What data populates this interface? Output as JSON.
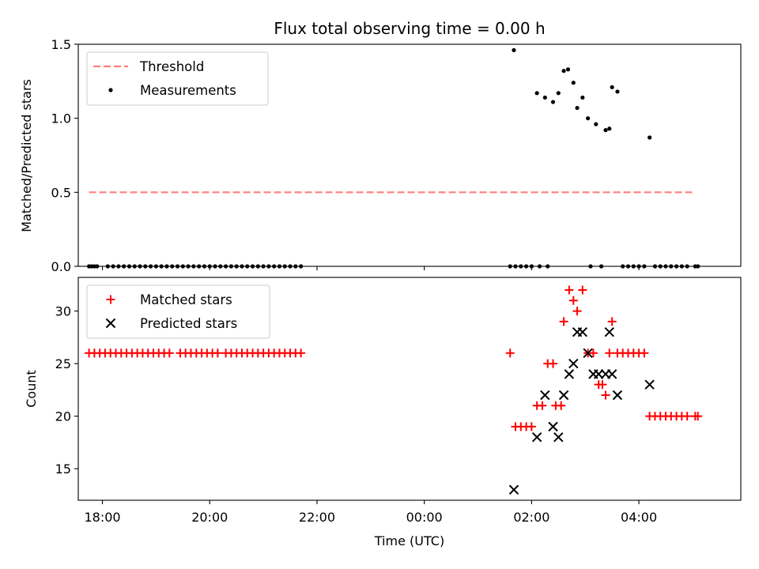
{
  "chart_data": [
    {
      "id": "top",
      "type": "scatter",
      "title": "Flux total observing time = 0.00 h",
      "ylabel": "Matched/Predicted stars",
      "xlabel": "",
      "xlim": [
        17.55,
        29.9
      ],
      "ylim": [
        0,
        1.5
      ],
      "yticks": [
        0.0,
        0.5,
        1.0,
        1.5
      ],
      "ytick_labels": [
        "0.0",
        "0.5",
        "1.0",
        "1.5"
      ],
      "xticks": [
        18,
        20,
        22,
        24,
        26,
        28
      ],
      "show_xtick_labels": false,
      "legend": {
        "position": "upper-left",
        "entries": [
          "Threshold",
          "Measurements"
        ]
      },
      "threshold": {
        "name": "Threshold",
        "value": 0.5,
        "x_start": 17.75,
        "x_end": 29.05,
        "color": "#ff7f7f",
        "style": "dashed"
      },
      "series": [
        {
          "name": "Measurements",
          "marker": "dot",
          "color": "#000000",
          "points": [
            [
              17.75,
              0
            ],
            [
              17.8,
              0
            ],
            [
              17.85,
              0
            ],
            [
              17.9,
              0
            ],
            [
              18.1,
              0
            ],
            [
              18.2,
              0
            ],
            [
              18.3,
              0
            ],
            [
              18.4,
              0
            ],
            [
              18.5,
              0
            ],
            [
              18.6,
              0
            ],
            [
              18.7,
              0
            ],
            [
              18.8,
              0
            ],
            [
              18.9,
              0
            ],
            [
              19.0,
              0
            ],
            [
              19.1,
              0
            ],
            [
              19.2,
              0
            ],
            [
              19.3,
              0
            ],
            [
              19.4,
              0
            ],
            [
              19.5,
              0
            ],
            [
              19.6,
              0
            ],
            [
              19.7,
              0
            ],
            [
              19.8,
              0
            ],
            [
              19.9,
              0
            ],
            [
              20.0,
              0
            ],
            [
              20.1,
              0
            ],
            [
              20.2,
              0
            ],
            [
              20.3,
              0
            ],
            [
              20.4,
              0
            ],
            [
              20.5,
              0
            ],
            [
              20.6,
              0
            ],
            [
              20.7,
              0
            ],
            [
              20.8,
              0
            ],
            [
              20.9,
              0
            ],
            [
              21.0,
              0
            ],
            [
              21.1,
              0
            ],
            [
              21.2,
              0
            ],
            [
              21.3,
              0
            ],
            [
              21.4,
              0
            ],
            [
              21.5,
              0
            ],
            [
              21.6,
              0
            ],
            [
              21.7,
              0
            ],
            [
              25.6,
              0
            ],
            [
              25.7,
              0
            ],
            [
              25.8,
              0
            ],
            [
              25.9,
              0
            ],
            [
              26.0,
              0
            ],
            [
              26.15,
              0
            ],
            [
              26.3,
              0
            ],
            [
              25.67,
              1.46
            ],
            [
              26.1,
              1.17
            ],
            [
              26.25,
              1.14
            ],
            [
              26.4,
              1.11
            ],
            [
              26.5,
              1.17
            ],
            [
              26.6,
              1.32
            ],
            [
              26.68,
              1.33
            ],
            [
              26.78,
              1.24
            ],
            [
              26.85,
              1.07
            ],
            [
              26.95,
              1.14
            ],
            [
              27.05,
              1.0
            ],
            [
              27.2,
              0.96
            ],
            [
              27.38,
              0.92
            ],
            [
              27.45,
              0.93
            ],
            [
              27.5,
              1.21
            ],
            [
              27.6,
              1.18
            ],
            [
              28.2,
              0.87
            ],
            [
              27.1,
              0
            ],
            [
              27.3,
              0
            ],
            [
              27.7,
              0
            ],
            [
              27.8,
              0
            ],
            [
              27.9,
              0
            ],
            [
              28.0,
              0
            ],
            [
              28.1,
              0
            ],
            [
              28.3,
              0
            ],
            [
              28.4,
              0
            ],
            [
              28.5,
              0
            ],
            [
              28.6,
              0
            ],
            [
              28.7,
              0
            ],
            [
              28.8,
              0
            ],
            [
              28.9,
              0
            ],
            [
              29.05,
              0
            ],
            [
              29.1,
              0
            ]
          ]
        }
      ]
    },
    {
      "id": "bottom",
      "type": "scatter",
      "title": "",
      "ylabel": "Count",
      "xlabel": "Time (UTC)",
      "xlim": [
        17.55,
        29.9
      ],
      "ylim": [
        12,
        33.2
      ],
      "yticks": [
        15,
        20,
        25,
        30
      ],
      "ytick_labels": [
        "15",
        "20",
        "25",
        "30"
      ],
      "xticks": [
        18,
        20,
        22,
        24,
        26,
        28
      ],
      "xtick_labels": [
        "18:00",
        "20:00",
        "22:00",
        "00:00",
        "02:00",
        "04:00"
      ],
      "show_xtick_labels": true,
      "legend": {
        "position": "upper-left",
        "entries": [
          "Matched stars",
          "Predicted stars"
        ]
      },
      "series": [
        {
          "name": "Matched stars",
          "marker": "plus",
          "color": "#ff0000",
          "points": [
            [
              17.75,
              26
            ],
            [
              17.85,
              26
            ],
            [
              17.95,
              26
            ],
            [
              18.05,
              26
            ],
            [
              18.15,
              26
            ],
            [
              18.25,
              26
            ],
            [
              18.35,
              26
            ],
            [
              18.45,
              26
            ],
            [
              18.55,
              26
            ],
            [
              18.65,
              26
            ],
            [
              18.75,
              26
            ],
            [
              18.85,
              26
            ],
            [
              18.95,
              26
            ],
            [
              19.05,
              26
            ],
            [
              19.15,
              26
            ],
            [
              19.25,
              26
            ],
            [
              19.45,
              26
            ],
            [
              19.55,
              26
            ],
            [
              19.65,
              26
            ],
            [
              19.75,
              26
            ],
            [
              19.85,
              26
            ],
            [
              19.95,
              26
            ],
            [
              20.05,
              26
            ],
            [
              20.15,
              26
            ],
            [
              20.3,
              26
            ],
            [
              20.4,
              26
            ],
            [
              20.5,
              26
            ],
            [
              20.6,
              26
            ],
            [
              20.7,
              26
            ],
            [
              20.8,
              26
            ],
            [
              20.9,
              26
            ],
            [
              21.0,
              26
            ],
            [
              21.1,
              26
            ],
            [
              21.2,
              26
            ],
            [
              21.3,
              26
            ],
            [
              21.4,
              26
            ],
            [
              21.5,
              26
            ],
            [
              21.6,
              26
            ],
            [
              21.7,
              26
            ],
            [
              25.6,
              26
            ],
            [
              25.7,
              19
            ],
            [
              25.8,
              19
            ],
            [
              25.9,
              19
            ],
            [
              26.0,
              19
            ],
            [
              26.1,
              21
            ],
            [
              26.2,
              21
            ],
            [
              26.3,
              25
            ],
            [
              26.4,
              25
            ],
            [
              26.45,
              21
            ],
            [
              26.55,
              21
            ],
            [
              26.6,
              29
            ],
            [
              26.7,
              32
            ],
            [
              26.78,
              31
            ],
            [
              26.85,
              30
            ],
            [
              26.95,
              32
            ],
            [
              27.05,
              26
            ],
            [
              27.15,
              26
            ],
            [
              27.25,
              23
            ],
            [
              27.32,
              23
            ],
            [
              27.38,
              22
            ],
            [
              27.45,
              26
            ],
            [
              27.5,
              29
            ],
            [
              27.6,
              26
            ],
            [
              27.7,
              26
            ],
            [
              27.8,
              26
            ],
            [
              27.9,
              26
            ],
            [
              28.0,
              26
            ],
            [
              28.1,
              26
            ],
            [
              28.2,
              20
            ],
            [
              28.3,
              20
            ],
            [
              28.4,
              20
            ],
            [
              28.5,
              20
            ],
            [
              28.6,
              20
            ],
            [
              28.7,
              20
            ],
            [
              28.8,
              20
            ],
            [
              28.9,
              20
            ],
            [
              29.05,
              20
            ],
            [
              29.1,
              20
            ]
          ]
        },
        {
          "name": "Predicted stars",
          "marker": "x",
          "color": "#000000",
          "points": [
            [
              25.67,
              13
            ],
            [
              26.1,
              18
            ],
            [
              26.25,
              22
            ],
            [
              26.4,
              19
            ],
            [
              26.5,
              18
            ],
            [
              26.6,
              22
            ],
            [
              26.7,
              24
            ],
            [
              26.78,
              25
            ],
            [
              26.85,
              28
            ],
            [
              26.95,
              28
            ],
            [
              27.05,
              26
            ],
            [
              27.15,
              24
            ],
            [
              27.25,
              24
            ],
            [
              27.38,
              24
            ],
            [
              27.45,
              28
            ],
            [
              27.5,
              24
            ],
            [
              27.6,
              22
            ],
            [
              28.2,
              23
            ]
          ]
        }
      ]
    }
  ]
}
